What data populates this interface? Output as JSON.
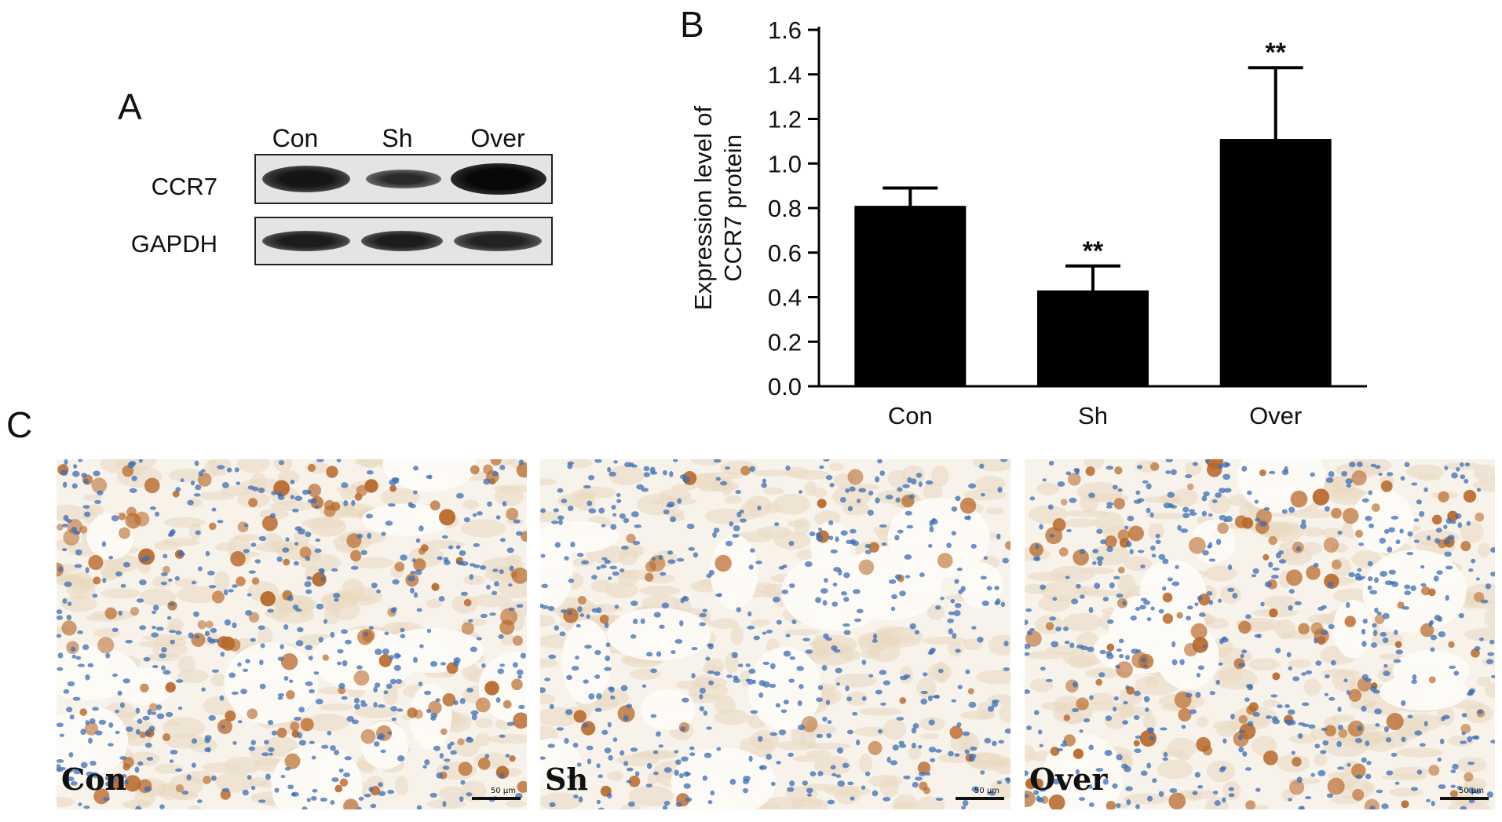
{
  "panels": {
    "a": {
      "letter": "A"
    },
    "b": {
      "letter": "B"
    },
    "c": {
      "letter": "C"
    }
  },
  "blot": {
    "lanes": [
      "Con",
      "Sh",
      "Over"
    ],
    "rows": [
      "CCR7",
      "GAPDH"
    ]
  },
  "chart_data": {
    "type": "bar",
    "categories": [
      "Con",
      "Sh",
      "Over"
    ],
    "values": [
      0.81,
      0.43,
      1.11
    ],
    "errors": [
      0.08,
      0.11,
      0.32
    ],
    "annotations": [
      "",
      "**",
      "**"
    ],
    "xlabel": "",
    "ylabel": [
      "Expression level of",
      "CCR7 protein"
    ],
    "ylim": [
      0,
      1.6
    ],
    "yticks": [
      "0.0",
      "0.2",
      "0.4",
      "0.6",
      "0.8",
      "1.0",
      "1.2",
      "1.4",
      "1.6"
    ],
    "bar_color": "#000000"
  },
  "micrographs": [
    {
      "label": "Con",
      "scale_label": "50 μm",
      "stain_level": 0.6
    },
    {
      "label": "Sh",
      "scale_label": "50 μm",
      "stain_level": 0.15
    },
    {
      "label": "Over",
      "scale_label": "50 μm",
      "stain_level": 0.55
    }
  ],
  "colors": {
    "hematoxylin": "#3b6db5",
    "dab": "#b8682a",
    "background": "#f7f2ea"
  }
}
